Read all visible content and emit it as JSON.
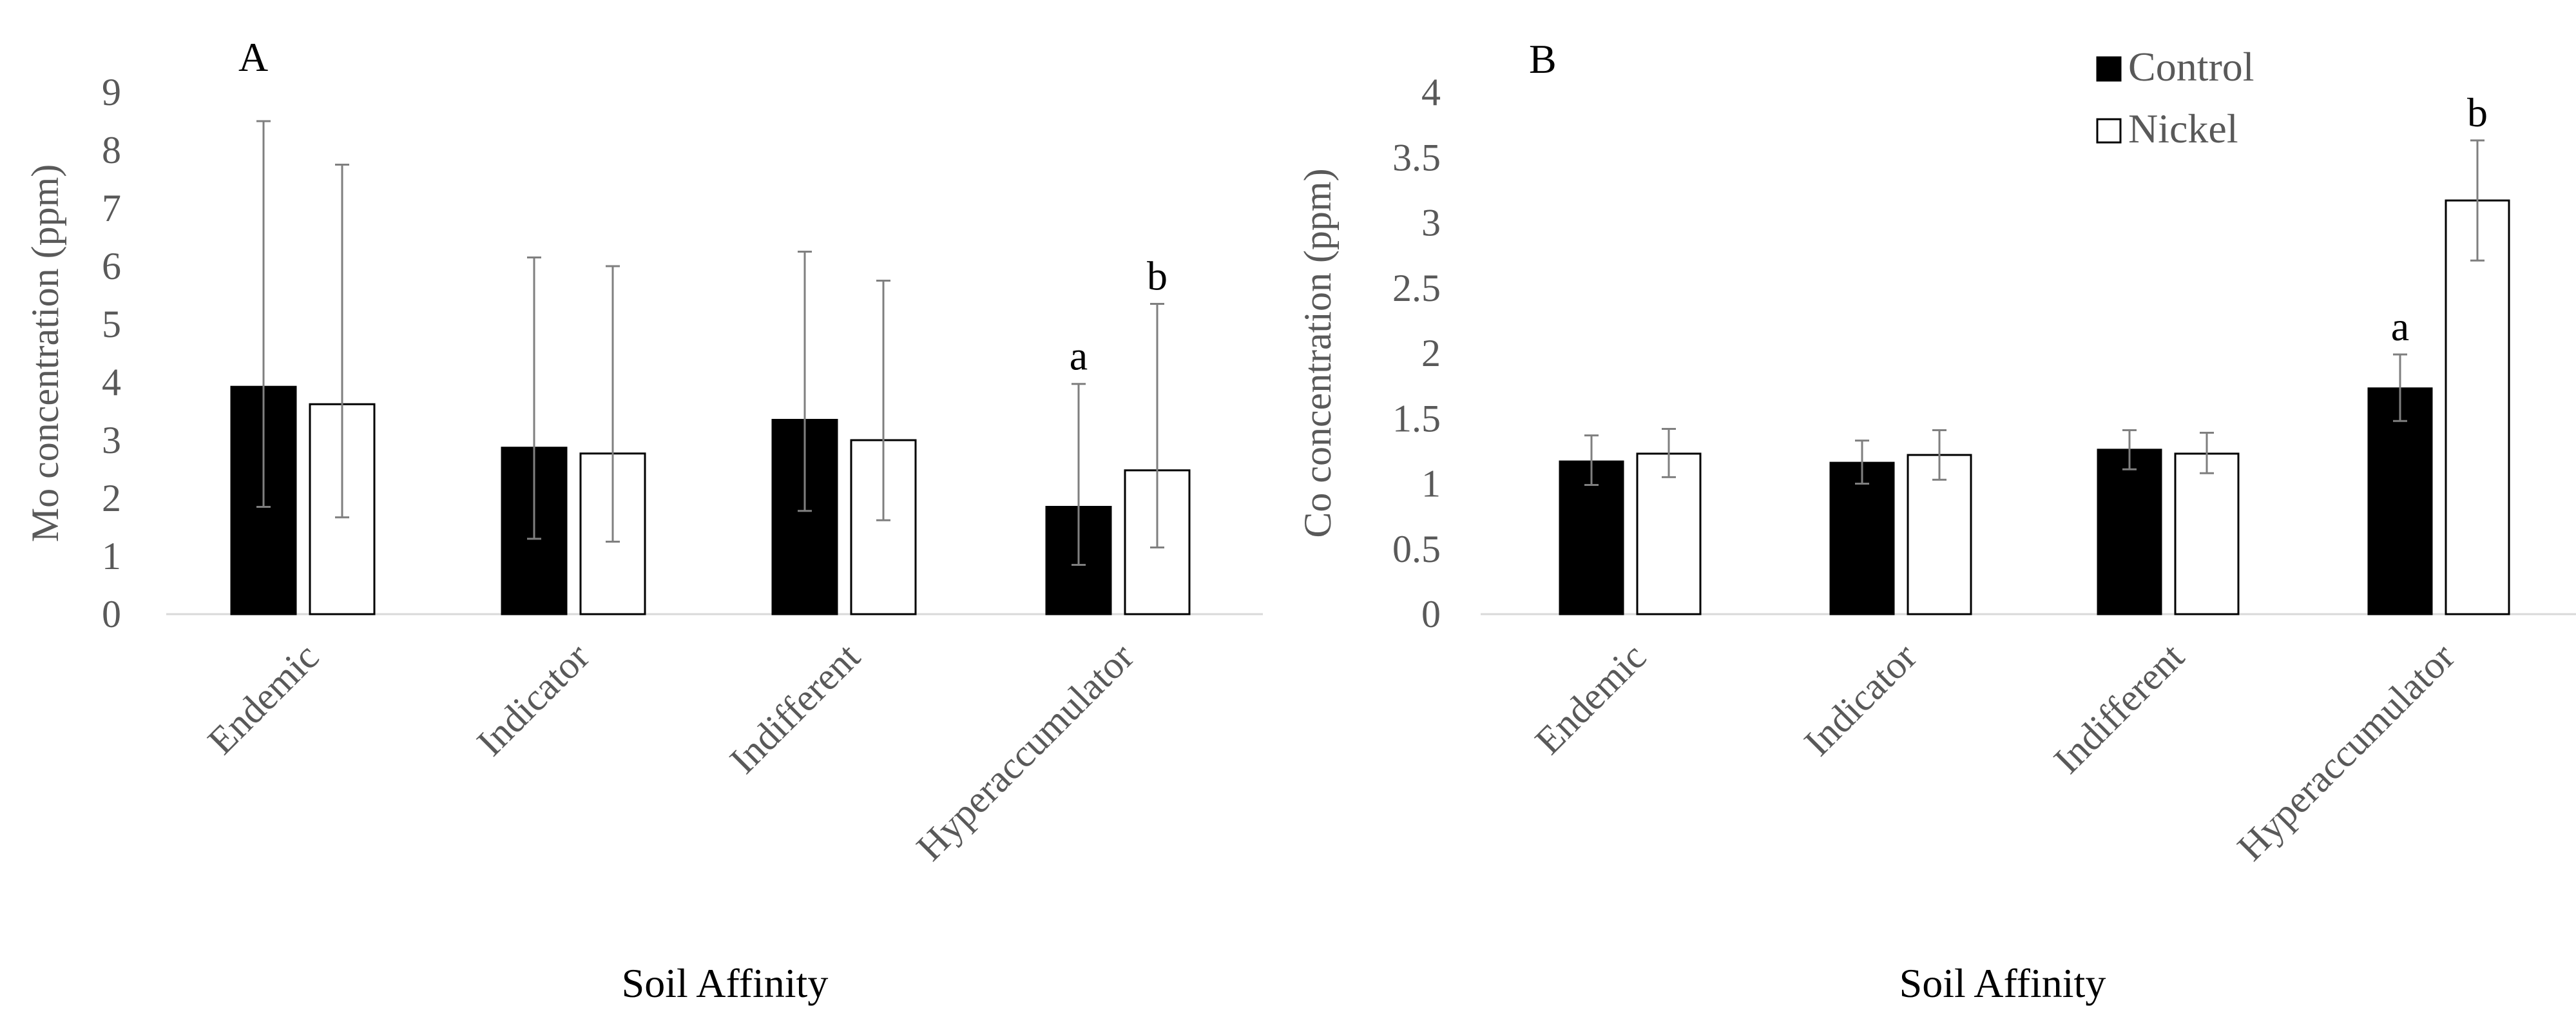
{
  "chart_data": [
    {
      "type": "bar",
      "panel_label": "A",
      "xlabel": "Soil Affinity",
      "ylabel": "Mo concentration (ppm)",
      "ylim": [
        0,
        9
      ],
      "yticks": [
        "0",
        "1",
        "2",
        "3",
        "4",
        "5",
        "6",
        "7",
        "8",
        "9"
      ],
      "grid": false,
      "categories": [
        "Endemic",
        "Indicator",
        "Indifferent",
        "Hyperaccumulator"
      ],
      "series": [
        {
          "name": "Control",
          "color": "#000000",
          "values": [
            3.92,
            2.87,
            3.35,
            1.85
          ],
          "err_low": [
            1.85,
            1.3,
            1.78,
            0.85
          ],
          "err_high": [
            8.5,
            6.15,
            6.25,
            3.97
          ]
        },
        {
          "name": "Nickel",
          "color": "#ffffff",
          "values": [
            3.62,
            2.77,
            3.0,
            2.48
          ],
          "err_low": [
            1.67,
            1.25,
            1.62,
            1.15
          ],
          "err_high": [
            7.75,
            6.0,
            5.75,
            5.35
          ]
        }
      ],
      "annotations": [
        {
          "category": "Hyperaccumulator",
          "series": "Control",
          "text": "a"
        },
        {
          "category": "Hyperaccumulator",
          "series": "Nickel",
          "text": "b"
        }
      ]
    },
    {
      "type": "bar",
      "panel_label": "B",
      "xlabel": "Soil Affinity",
      "ylabel": "Co concentration (ppm)",
      "ylim": [
        0,
        4
      ],
      "yticks": [
        "0",
        "0.5",
        "1",
        "1.5",
        "2",
        "2.5",
        "3",
        "3.5",
        "4"
      ],
      "grid": false,
      "legend": "top-right",
      "categories": [
        "Endemic",
        "Indicator",
        "Indifferent",
        "Hyperaccumulator"
      ],
      "series": [
        {
          "name": "Control",
          "color": "#000000",
          "values": [
            1.17,
            1.16,
            1.26,
            1.73
          ],
          "err_low": [
            0.99,
            1.0,
            1.11,
            1.48
          ],
          "err_high": [
            1.37,
            1.33,
            1.41,
            1.99
          ]
        },
        {
          "name": "Nickel",
          "color": "#ffffff",
          "values": [
            1.23,
            1.22,
            1.23,
            3.17
          ],
          "err_low": [
            1.05,
            1.03,
            1.08,
            2.71
          ],
          "err_high": [
            1.42,
            1.41,
            1.39,
            3.63
          ]
        }
      ],
      "annotations": [
        {
          "category": "Hyperaccumulator",
          "series": "Control",
          "text": "a"
        },
        {
          "category": "Hyperaccumulator",
          "series": "Nickel",
          "text": "b"
        }
      ]
    }
  ]
}
